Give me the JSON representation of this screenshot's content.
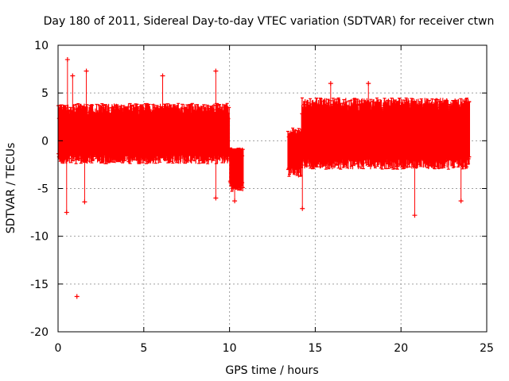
{
  "chart_data": {
    "type": "scatter",
    "title": "Day 180 of 2011, Sidereal Day-to-day VTEC variation (SDTVAR) for receiver ctwn",
    "xlabel": "GPS time / hours",
    "ylabel": "SDTVAR / TECUs",
    "xlim": [
      0,
      25
    ],
    "ylim": [
      -20,
      10
    ],
    "xticks": [
      0,
      5,
      10,
      15,
      20,
      25
    ],
    "yticks": [
      -20,
      -15,
      -10,
      -5,
      0,
      5,
      10
    ],
    "xtick_labels": [
      "0",
      "5",
      "10",
      "15",
      "20",
      "25"
    ],
    "ytick_labels": [
      "-20",
      "-15",
      "-10",
      "-5",
      "0",
      "5",
      "10"
    ],
    "grid": true,
    "series_color": "#ff0000",
    "segments": [
      {
        "x_start": 0.0,
        "x_end": 10.0,
        "typical_low": -2.0,
        "typical_high": 3.5
      },
      {
        "x_start": 10.0,
        "x_end": 10.8,
        "typical_low": -5.0,
        "typical_high": -1.0
      },
      {
        "x_start": 13.4,
        "x_end": 14.2,
        "typical_low": -3.5,
        "typical_high": 1.0
      },
      {
        "x_start": 14.2,
        "x_end": 24.0,
        "typical_low": -2.5,
        "typical_high": 4.0
      }
    ],
    "notable_points": [
      {
        "x": 0.55,
        "y": 8.5
      },
      {
        "x": 0.85,
        "y": 6.8
      },
      {
        "x": 1.65,
        "y": 7.3
      },
      {
        "x": 6.1,
        "y": 6.8
      },
      {
        "x": 9.2,
        "y": 7.3
      },
      {
        "x": 15.9,
        "y": 6.0
      },
      {
        "x": 18.1,
        "y": 6.0
      },
      {
        "x": 0.5,
        "y": -7.5
      },
      {
        "x": 1.55,
        "y": -6.4
      },
      {
        "x": 9.2,
        "y": -6.0
      },
      {
        "x": 10.3,
        "y": -6.3
      },
      {
        "x": 14.25,
        "y": -7.1
      },
      {
        "x": 20.8,
        "y": -7.8
      },
      {
        "x": 23.5,
        "y": -6.3
      },
      {
        "x": 1.1,
        "y": -16.3
      }
    ]
  }
}
